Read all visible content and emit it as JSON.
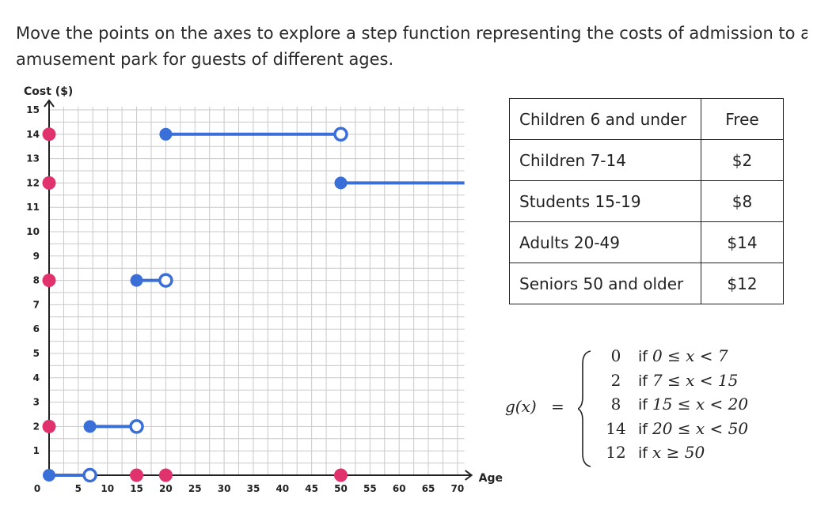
{
  "intro": {
    "line1": "Move the points on the axes to explore a step function representing the costs of admission to an",
    "line2": "amusement park for guests of different ages."
  },
  "colors": {
    "segment": "#3b6fd8",
    "handle": "#e0336d",
    "grid": "#c9c9c9",
    "axis": "#222222"
  },
  "chart_data": {
    "type": "step",
    "xlabel": "Age",
    "ylabel": "Cost ($)",
    "xlim": [
      0,
      72
    ],
    "ylim": [
      0,
      15
    ],
    "x_ticks": [
      "5",
      "10",
      "15",
      "20",
      "25",
      "30",
      "35",
      "40",
      "45",
      "50",
      "55",
      "60",
      "65",
      "70"
    ],
    "y_ticks": [
      "1",
      "2",
      "3",
      "4",
      "5",
      "6",
      "7",
      "8",
      "9",
      "10",
      "11",
      "12",
      "13",
      "14",
      "15"
    ],
    "origin_label": "0",
    "grid": true,
    "segments": [
      {
        "x_start": 0,
        "x_end": 7,
        "y": 0,
        "start_closed": true,
        "end_closed": false
      },
      {
        "x_start": 7,
        "x_end": 15,
        "y": 2,
        "start_closed": true,
        "end_closed": false
      },
      {
        "x_start": 15,
        "x_end": 20,
        "y": 8,
        "start_closed": true,
        "end_closed": false
      },
      {
        "x_start": 20,
        "x_end": 50,
        "y": 14,
        "start_closed": true,
        "end_closed": false
      },
      {
        "x_start": 50,
        "x_end": 72,
        "y": 12,
        "start_closed": true,
        "end_closed": null
      }
    ],
    "y_axis_handles": [
      2,
      8,
      12,
      14
    ],
    "x_axis_handles": [
      15,
      20,
      50
    ]
  },
  "table": {
    "rows": [
      {
        "group": "Children 6 and under",
        "price": "Free"
      },
      {
        "group": "Children 7-14",
        "price": "$2"
      },
      {
        "group": "Students 15-19",
        "price": "$8"
      },
      {
        "group": "Adults 20-49",
        "price": "$14"
      },
      {
        "group": "Seniors 50 and older",
        "price": "$12"
      }
    ]
  },
  "formula": {
    "name": "g(x)",
    "equals": "=",
    "cases": [
      {
        "value": "0",
        "if": "if",
        "condition": "0 ≤ x < 7"
      },
      {
        "value": "2",
        "if": "if",
        "condition": "7 ≤ x < 15"
      },
      {
        "value": "8",
        "if": "if",
        "condition": "15 ≤ x < 20"
      },
      {
        "value": "14",
        "if": "if",
        "condition": "20 ≤ x < 50"
      },
      {
        "value": "12",
        "if": "if",
        "condition": "x ≥ 50"
      }
    ]
  }
}
